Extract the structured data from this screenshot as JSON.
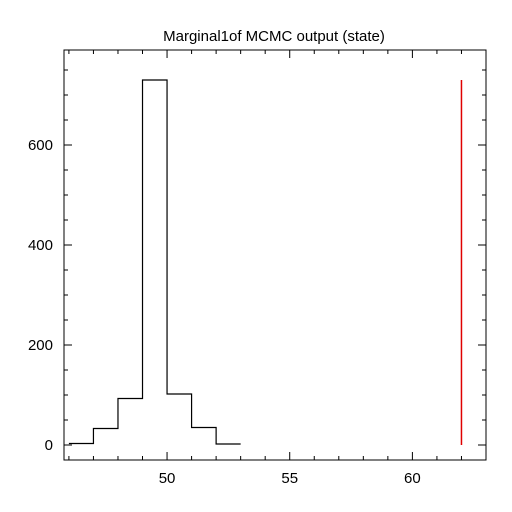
{
  "chart_data": {
    "type": "histogram",
    "title": "Marginal1of MCMC output (state)",
    "xlabel": "",
    "ylabel": "",
    "xlim": [
      45.8,
      63
    ],
    "ylim": [
      -30,
      790
    ],
    "x_ticks": [
      50,
      55,
      60
    ],
    "y_ticks": [
      0,
      200,
      400,
      600
    ],
    "x_tick_labels": [
      "50",
      "55",
      "60"
    ],
    "y_tick_labels": [
      "0",
      "200",
      "400",
      "600"
    ],
    "bins": [
      46,
      47,
      48,
      49,
      50,
      51,
      52,
      53
    ],
    "counts": [
      3,
      33,
      93,
      730,
      102,
      35,
      2
    ],
    "marker": {
      "x": 62,
      "y_bottom": 0,
      "y_top": 730,
      "color": "#e00000"
    },
    "line_color": "#000000",
    "grid": false
  }
}
